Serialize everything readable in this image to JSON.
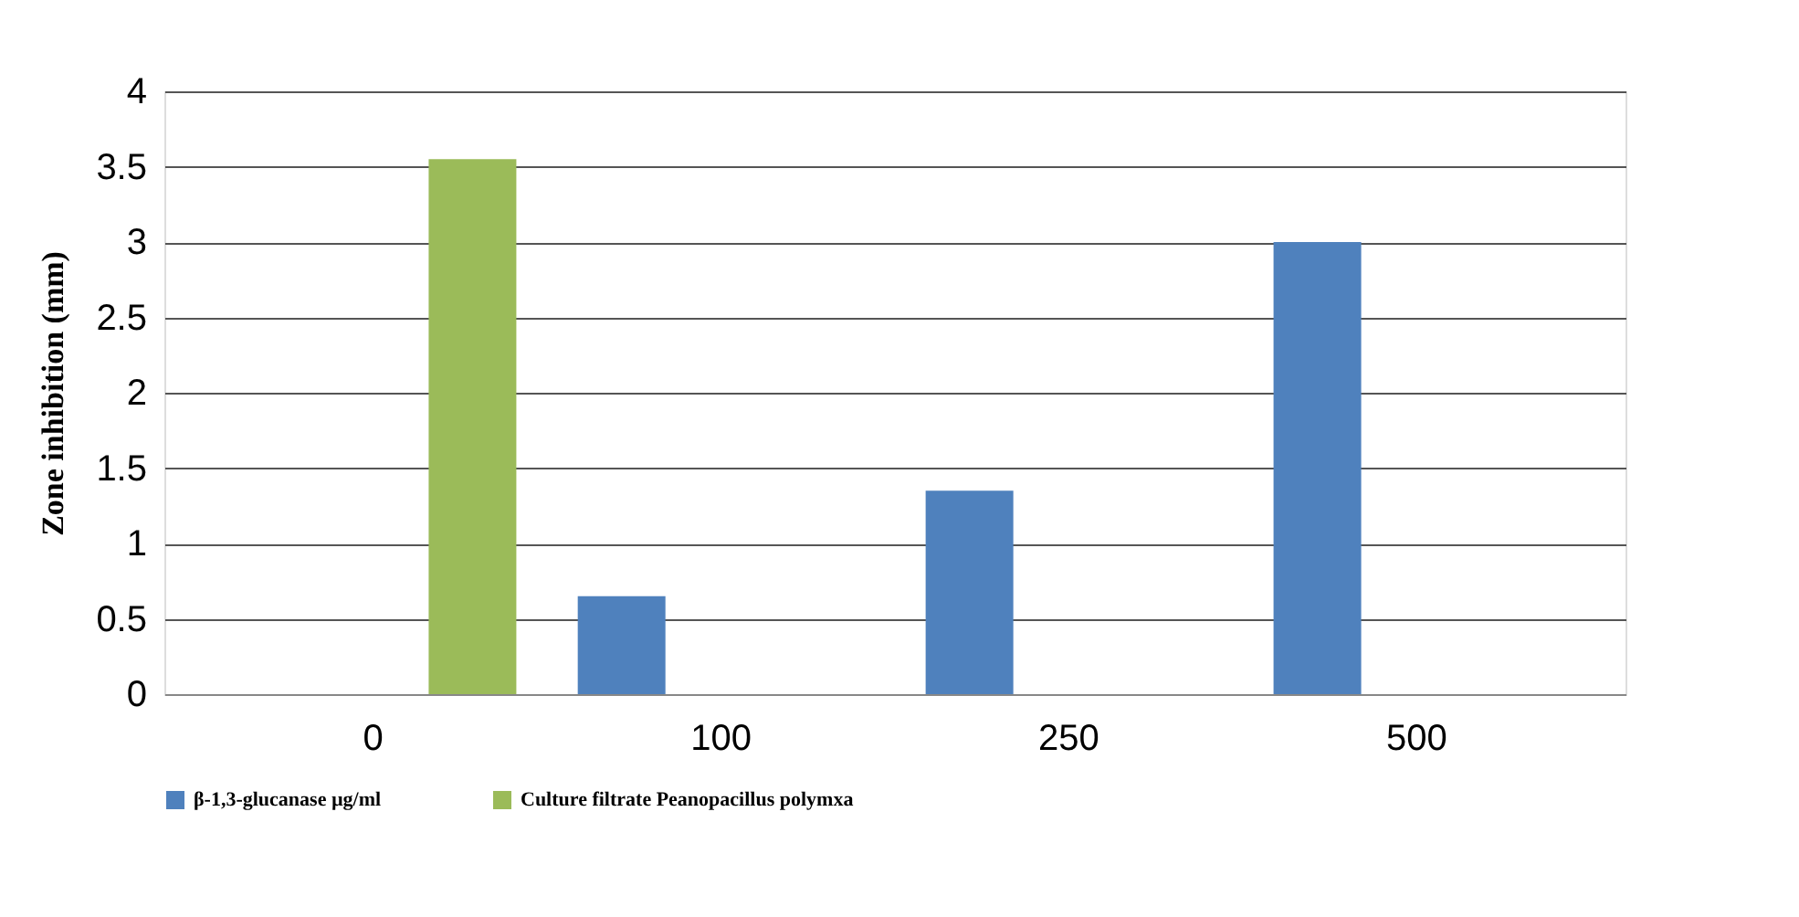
{
  "chart_data": {
    "type": "bar",
    "ylabel": "Zone inhibition (mm)",
    "categories": [
      "0",
      "100",
      "250",
      "500"
    ],
    "series": [
      {
        "name": "β-1,3-glucanase µg/ml",
        "color": "#4f81bd",
        "values": [
          0,
          0.65,
          1.35,
          3.0
        ]
      },
      {
        "name": "Culture filtrate Peanopacillus polymxa",
        "color": "#9bbb59",
        "values": [
          3.55,
          null,
          null,
          null
        ]
      }
    ],
    "ylim": [
      0,
      4
    ],
    "yticks": [
      0,
      0.5,
      1,
      1.5,
      2,
      2.5,
      3,
      3.5,
      4
    ],
    "grid": "y",
    "legend": "bottom"
  }
}
